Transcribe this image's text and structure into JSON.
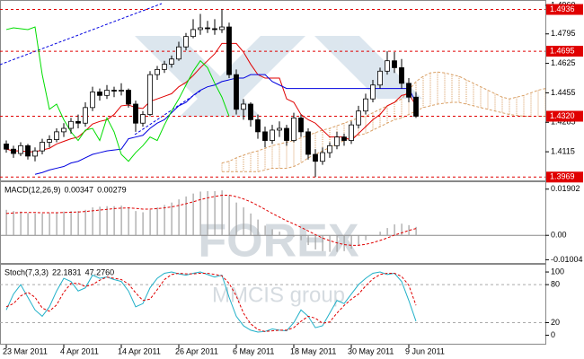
{
  "chart_data": [
    {
      "type": "candlestick",
      "categories": [
        "23 Mar 2011",
        null,
        null,
        null,
        null,
        null,
        null,
        null,
        "4 Apr 2011",
        null,
        null,
        null,
        null,
        null,
        null,
        null,
        "14 Apr 2011",
        null,
        null,
        null,
        null,
        null,
        null,
        null,
        "26 Apr 2011",
        null,
        null,
        null,
        null,
        null,
        null,
        null,
        "6 May 2011",
        null,
        null,
        null,
        null,
        null,
        null,
        null,
        "18 May 2011",
        null,
        null,
        null,
        null,
        null,
        null,
        null,
        "30 May 2011",
        null,
        null,
        null,
        null,
        null,
        null,
        null,
        "9 Jun 2011",
        null,
        null,
        null,
        null,
        null,
        null,
        null,
        null,
        null,
        null,
        null,
        null,
        null,
        null,
        null,
        null,
        null,
        null,
        null
      ],
      "open": [
        1.416,
        1.413,
        1.4105,
        1.415,
        1.409,
        1.412,
        1.417,
        1.4185,
        1.423,
        1.425,
        1.429,
        1.428,
        1.437,
        1.446,
        1.444,
        1.447,
        1.4465,
        1.447,
        1.439,
        1.428,
        1.433,
        1.456,
        1.459,
        1.462,
        1.465,
        1.472,
        1.478,
        1.482,
        1.483,
        1.4825,
        1.482,
        1.4835,
        1.456,
        1.436,
        1.439,
        1.43,
        1.423,
        1.418,
        1.424,
        1.425,
        1.418,
        1.431,
        1.423,
        1.41,
        1.406,
        1.411,
        1.415,
        1.42,
        1.418,
        1.427,
        1.435,
        1.442,
        1.45,
        1.458,
        1.464,
        1.46,
        1.451,
        1.443,
        null,
        null,
        null,
        null,
        null,
        null,
        null,
        null,
        null,
        null,
        null,
        null,
        null,
        null,
        null,
        null,
        null,
        null
      ],
      "high": [
        1.418,
        1.415,
        1.417,
        1.416,
        1.414,
        1.419,
        1.421,
        1.425,
        1.428,
        1.431,
        1.433,
        1.44,
        1.449,
        1.448,
        1.45,
        1.449,
        1.451,
        1.448,
        1.441,
        1.435,
        1.458,
        1.461,
        1.464,
        1.467,
        1.475,
        1.48,
        1.488,
        1.491,
        1.487,
        1.488,
        1.4936,
        1.486,
        1.459,
        1.442,
        1.44,
        1.433,
        1.426,
        1.427,
        1.429,
        1.427,
        1.434,
        1.433,
        1.425,
        1.413,
        1.414,
        1.417,
        1.423,
        1.422,
        1.429,
        1.438,
        1.445,
        1.453,
        1.46,
        1.4695,
        1.469,
        1.465,
        1.454,
        1.446,
        null,
        null,
        null,
        null,
        null,
        null,
        null,
        null,
        null,
        null,
        null,
        null,
        null,
        null,
        null,
        null,
        null,
        null
      ],
      "low": [
        1.411,
        1.408,
        1.409,
        1.407,
        1.406,
        1.41,
        1.414,
        1.417,
        1.42,
        1.422,
        1.425,
        1.426,
        1.435,
        1.441,
        1.442,
        1.443,
        1.444,
        1.437,
        1.423,
        1.426,
        1.432,
        1.453,
        1.457,
        1.46,
        1.464,
        1.47,
        1.477,
        1.479,
        1.48,
        1.479,
        1.48,
        1.454,
        1.433,
        1.43,
        1.426,
        1.419,
        1.414,
        1.416,
        1.42,
        1.415,
        1.417,
        1.42,
        1.407,
        1.3969,
        1.404,
        1.408,
        1.413,
        1.415,
        1.416,
        1.425,
        1.433,
        1.44,
        1.448,
        1.456,
        1.457,
        1.448,
        1.44,
        1.431,
        null,
        null,
        null,
        null,
        null,
        null,
        null,
        null,
        null,
        null,
        null,
        null,
        null,
        null,
        null,
        null,
        null,
        null
      ],
      "close": [
        1.413,
        1.4105,
        1.415,
        1.409,
        1.412,
        1.417,
        1.4185,
        1.423,
        1.425,
        1.429,
        1.428,
        1.437,
        1.446,
        1.444,
        1.447,
        1.4465,
        1.447,
        1.439,
        1.428,
        1.433,
        1.456,
        1.459,
        1.462,
        1.465,
        1.472,
        1.478,
        1.482,
        1.483,
        1.4825,
        1.482,
        1.4835,
        1.456,
        1.436,
        1.439,
        1.43,
        1.423,
        1.418,
        1.424,
        1.425,
        1.418,
        1.431,
        1.423,
        1.41,
        1.406,
        1.411,
        1.415,
        1.42,
        1.418,
        1.427,
        1.435,
        1.442,
        1.45,
        1.458,
        1.464,
        1.46,
        1.451,
        1.443,
        1.432,
        null,
        null,
        null,
        null,
        null,
        null,
        null,
        null,
        null,
        null,
        null,
        null,
        null,
        null,
        null,
        null,
        null,
        null
      ],
      "up_color": "#ffffff",
      "down_color": "#000000",
      "wick_color": "#000000",
      "lines": [
        {
          "color": "#e00000",
          "values": [
            1.413,
            1.412,
            1.412,
            1.4115,
            1.4115,
            1.4125,
            1.4135,
            1.416,
            1.4175,
            1.419,
            1.42,
            1.4235,
            1.4275,
            1.429,
            1.43,
            1.433,
            1.438,
            1.4385,
            1.437,
            1.4365,
            1.4405,
            1.442,
            1.4435,
            1.445,
            1.449,
            1.4515,
            1.4555,
            1.46,
            1.464,
            1.468,
            1.474,
            1.474,
            1.474,
            1.469,
            1.462,
            1.456,
            1.454,
            1.454,
            1.454,
            1.442,
            1.44,
            1.433,
            1.43,
            1.428,
            1.424,
            1.42,
            1.42,
            1.42,
            1.418,
            1.422,
            1.426,
            1.43,
            1.433,
            1.438,
            1.44,
            1.444,
            1.445,
            1.438,
            null,
            null,
            null,
            null,
            null,
            null,
            null,
            null,
            null,
            null,
            null,
            null,
            null,
            null,
            null,
            null,
            null,
            null
          ]
        },
        {
          "color": "#0000e0",
          "values": [
            null,
            null,
            null,
            null,
            1.3985,
            1.3995,
            1.401,
            1.402,
            1.403,
            1.405,
            1.406,
            1.408,
            1.41,
            1.411,
            1.412,
            1.4125,
            1.413,
            1.419,
            1.42,
            1.421,
            1.425,
            1.428,
            1.43,
            1.434,
            1.438,
            1.44,
            1.444,
            1.447,
            1.449,
            1.45,
            1.452,
            1.453,
            1.454,
            1.454,
            1.456,
            1.456,
            1.456,
            1.452,
            1.45,
            1.448,
            1.448,
            1.448,
            1.448,
            1.448,
            1.448,
            1.448,
            1.448,
            1.448,
            1.448,
            1.448,
            1.448,
            1.448,
            1.448,
            1.448,
            1.448,
            1.448,
            1.448,
            1.44,
            null,
            null,
            null,
            null,
            null,
            null,
            null,
            null,
            null,
            null,
            null,
            null,
            null,
            null,
            null,
            null,
            null,
            null
          ]
        },
        {
          "color": "#00dd00",
          "values": [
            1.482,
            1.483,
            1.4825,
            1.482,
            1.4835,
            1.456,
            1.436,
            1.439,
            1.43,
            1.423,
            1.418,
            1.424,
            1.425,
            1.418,
            1.431,
            1.423,
            1.41,
            1.406,
            1.411,
            1.415,
            1.42,
            1.418,
            1.427,
            1.435,
            1.442,
            1.45,
            1.458,
            1.464,
            1.46,
            1.451,
            1.443,
            1.432,
            null,
            null,
            null,
            null,
            null,
            null,
            null,
            null,
            null,
            null,
            null,
            null,
            null,
            null,
            null,
            null,
            null,
            null,
            null,
            null,
            null,
            null,
            null,
            null,
            null,
            null,
            null,
            null,
            null,
            null,
            null,
            null,
            null,
            null,
            null,
            null,
            null,
            null,
            null,
            null,
            null,
            null,
            null,
            null
          ]
        }
      ],
      "cloud": {
        "color": "#d9a066",
        "span_a": [
          null,
          null,
          null,
          null,
          null,
          null,
          null,
          null,
          null,
          null,
          null,
          null,
          null,
          null,
          null,
          null,
          null,
          null,
          null,
          null,
          null,
          null,
          null,
          null,
          null,
          null,
          null,
          null,
          null,
          null,
          1.405,
          1.406,
          1.408,
          1.4095,
          1.411,
          1.412,
          1.4135,
          1.415,
          1.416,
          1.417,
          1.418,
          1.4195,
          1.421,
          1.4225,
          1.424,
          1.425,
          1.4265,
          1.428,
          1.4295,
          1.431,
          1.432,
          1.434,
          1.436,
          1.438,
          1.44,
          1.442,
          1.447,
          1.452,
          1.455,
          1.457,
          1.4575,
          1.457,
          1.456,
          1.455,
          1.453,
          1.451,
          1.449,
          1.447,
          1.445,
          1.443,
          1.442,
          1.443,
          1.444,
          1.4455,
          1.447,
          1.448
        ],
        "span_b": [
          null,
          null,
          null,
          null,
          null,
          null,
          null,
          null,
          null,
          null,
          null,
          null,
          null,
          null,
          null,
          null,
          null,
          null,
          null,
          null,
          null,
          null,
          null,
          null,
          null,
          null,
          null,
          null,
          null,
          null,
          1.4,
          1.4,
          1.4,
          1.4,
          1.4,
          1.4,
          1.401,
          1.402,
          1.402,
          1.402,
          1.403,
          1.405,
          1.408,
          1.41,
          1.412,
          1.414,
          1.416,
          1.418,
          1.42,
          1.421,
          1.422,
          1.424,
          1.426,
          1.428,
          1.43,
          1.431,
          1.433,
          1.435,
          1.437,
          1.438,
          1.439,
          1.4395,
          1.44,
          1.44,
          1.439,
          1.438,
          1.437,
          1.436,
          1.435,
          1.434,
          1.433,
          1.4325,
          1.432,
          1.432,
          1.432,
          1.432
        ]
      },
      "levels": {
        "color": "#e00000",
        "values": [
          1.4936,
          1.4695,
          {
            "value": 1.432,
            "label": "1.4320"
          },
          1.3969
        ]
      },
      "ylim": [
        1.3955,
        1.4975
      ],
      "yticks": [
        {
          "value": 1.496,
          "label": "1.4960"
        },
        1.4795,
        1.4625,
        1.4455,
        1.4285,
        1.4115
      ]
    },
    {
      "type": "macd",
      "label": "MACD(12,26,9)",
      "readout": [
        0.00347,
        0.00279
      ],
      "histogram": {
        "color": "#a0a0a0",
        "values": [
          0.0105,
          0.01,
          0.0098,
          0.0092,
          0.009,
          0.009,
          0.0092,
          0.0095,
          0.0098,
          0.01,
          0.01,
          0.0105,
          0.0115,
          0.0118,
          0.012,
          0.012,
          0.0122,
          0.0115,
          0.01,
          0.0095,
          0.0105,
          0.0115,
          0.0125,
          0.0135,
          0.0148,
          0.016,
          0.0172,
          0.018,
          0.0182,
          0.0182,
          0.0185,
          0.0165,
          0.0135,
          0.0115,
          0.009,
          0.0065,
          0.004,
          0.0025,
          0.0015,
          0.0,
          -0.0005,
          -0.002,
          -0.004,
          -0.0058,
          -0.0065,
          -0.0068,
          -0.0068,
          -0.0065,
          -0.0055,
          -0.004,
          -0.002,
          0.0,
          0.0015,
          0.003,
          0.0045,
          0.0048,
          0.0042,
          0.00347
        ]
      },
      "signal": {
        "color": "#e00000",
        "values": [
          0.009,
          0.0092,
          0.0094,
          0.0094,
          0.0094,
          0.0093,
          0.0093,
          0.0093,
          0.0094,
          0.0095,
          0.0096,
          0.0098,
          0.0101,
          0.0104,
          0.0107,
          0.011,
          0.0112,
          0.0113,
          0.0111,
          0.0108,
          0.0108,
          0.011,
          0.0113,
          0.0117,
          0.0123,
          0.013,
          0.0138,
          0.0147,
          0.0154,
          0.016,
          0.0165,
          0.0165,
          0.0159,
          0.015,
          0.0138,
          0.0123,
          0.0107,
          0.009,
          0.0075,
          0.006,
          0.0047,
          0.0033,
          0.0018,
          0.0003,
          -0.0011,
          -0.0022,
          -0.0031,
          -0.0038,
          -0.0041,
          -0.0041,
          -0.0037,
          -0.003,
          -0.0021,
          -0.0011,
          0.0001,
          0.001,
          0.002,
          0.00279
        ]
      },
      "levels": [
        0
      ],
      "ylim": [
        -0.011,
        0.0215
      ],
      "yticks": [
        0.01902,
        {
          "value": 0,
          "label": "0.00"
        },
        -0.01004
      ]
    },
    {
      "type": "stochastic",
      "label": "Stoch(7,3,3)",
      "readout": [
        "22.1831",
        "47.2760"
      ],
      "series": [
        {
          "color": "#20b0c8",
          "values": [
            40,
            65,
            80,
            60,
            40,
            30,
            45,
            70,
            90,
            85,
            70,
            75,
            95,
            90,
            92,
            88,
            85,
            70,
            45,
            50,
            75,
            90,
            98,
            100,
            97,
            95,
            98,
            100,
            96,
            92,
            95,
            60,
            30,
            15,
            8,
            5,
            6,
            10,
            8,
            7,
            20,
            40,
            30,
            12,
            15,
            35,
            55,
            50,
            65,
            80,
            90,
            98,
            100,
            96,
            98,
            85,
            55,
            22.1831
          ]
        },
        {
          "color": "#e00000",
          "dashed": true,
          "values": [
            45,
            50,
            62,
            68,
            60,
            43,
            38,
            48,
            68,
            82,
            82,
            77,
            80,
            87,
            92,
            90,
            88,
            81,
            67,
            55,
            57,
            72,
            88,
            96,
            98,
            97,
            97,
            98,
            98,
            96,
            94,
            82,
            62,
            35,
            18,
            9,
            6,
            7,
            8,
            8,
            12,
            22,
            30,
            27,
            19,
            21,
            35,
            47,
            57,
            65,
            78,
            89,
            96,
            98,
            98,
            93,
            79,
            47.276
          ]
        }
      ],
      "levels": [
        80,
        20
      ],
      "ylim": [
        -12,
        110
      ],
      "yticks": [
        100,
        80,
        20,
        0
      ]
    }
  ],
  "watermark": {
    "title": "FOREX",
    "subtitle": "MMCIS group"
  }
}
